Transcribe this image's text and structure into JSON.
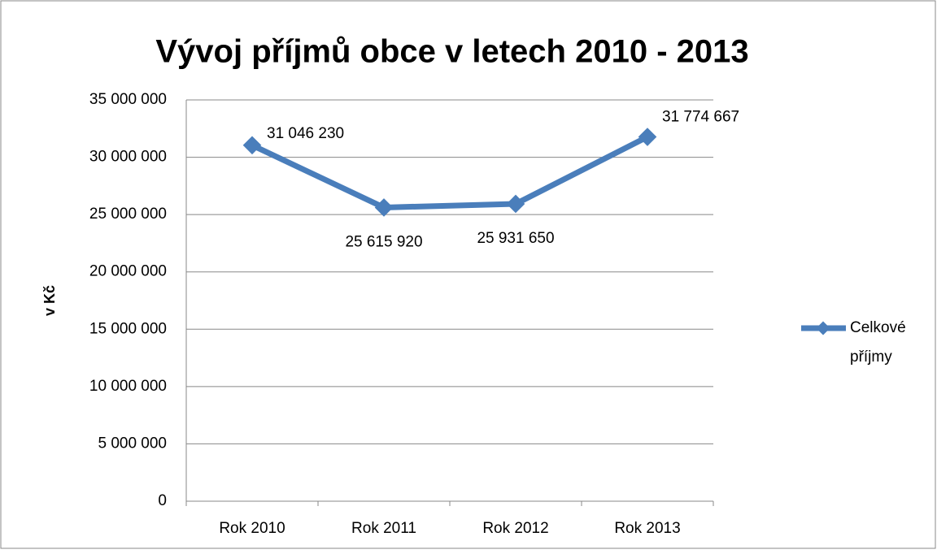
{
  "chart_data": {
    "type": "line",
    "title": "Vývoj příjmů obce v letech 2010 - 2013",
    "ylabel": "v Kč",
    "categories": [
      "Rok 2010",
      "Rok 2011",
      "Rok 2012",
      "Rok 2013"
    ],
    "series": [
      {
        "name": "Celkové příjmy",
        "color": "#4a7ebb",
        "values": [
          31046230,
          25615920,
          25931650,
          31774667
        ],
        "value_labels": [
          "31 046 230",
          "25 615 920",
          "25 931 650",
          "31 774 667"
        ]
      }
    ],
    "ylim": [
      0,
      35000000
    ],
    "yticks": [
      {
        "value": 0,
        "label": "0"
      },
      {
        "value": 5000000,
        "label": "5 000 000"
      },
      {
        "value": 10000000,
        "label": "10 000 000"
      },
      {
        "value": 15000000,
        "label": "15 000 000"
      },
      {
        "value": 20000000,
        "label": "20 000 000"
      },
      {
        "value": 25000000,
        "label": "25 000 000"
      },
      {
        "value": 30000000,
        "label": "30 000 000"
      },
      {
        "value": 35000000,
        "label": "35 000 000"
      }
    ],
    "grid": true,
    "legend": "right"
  }
}
